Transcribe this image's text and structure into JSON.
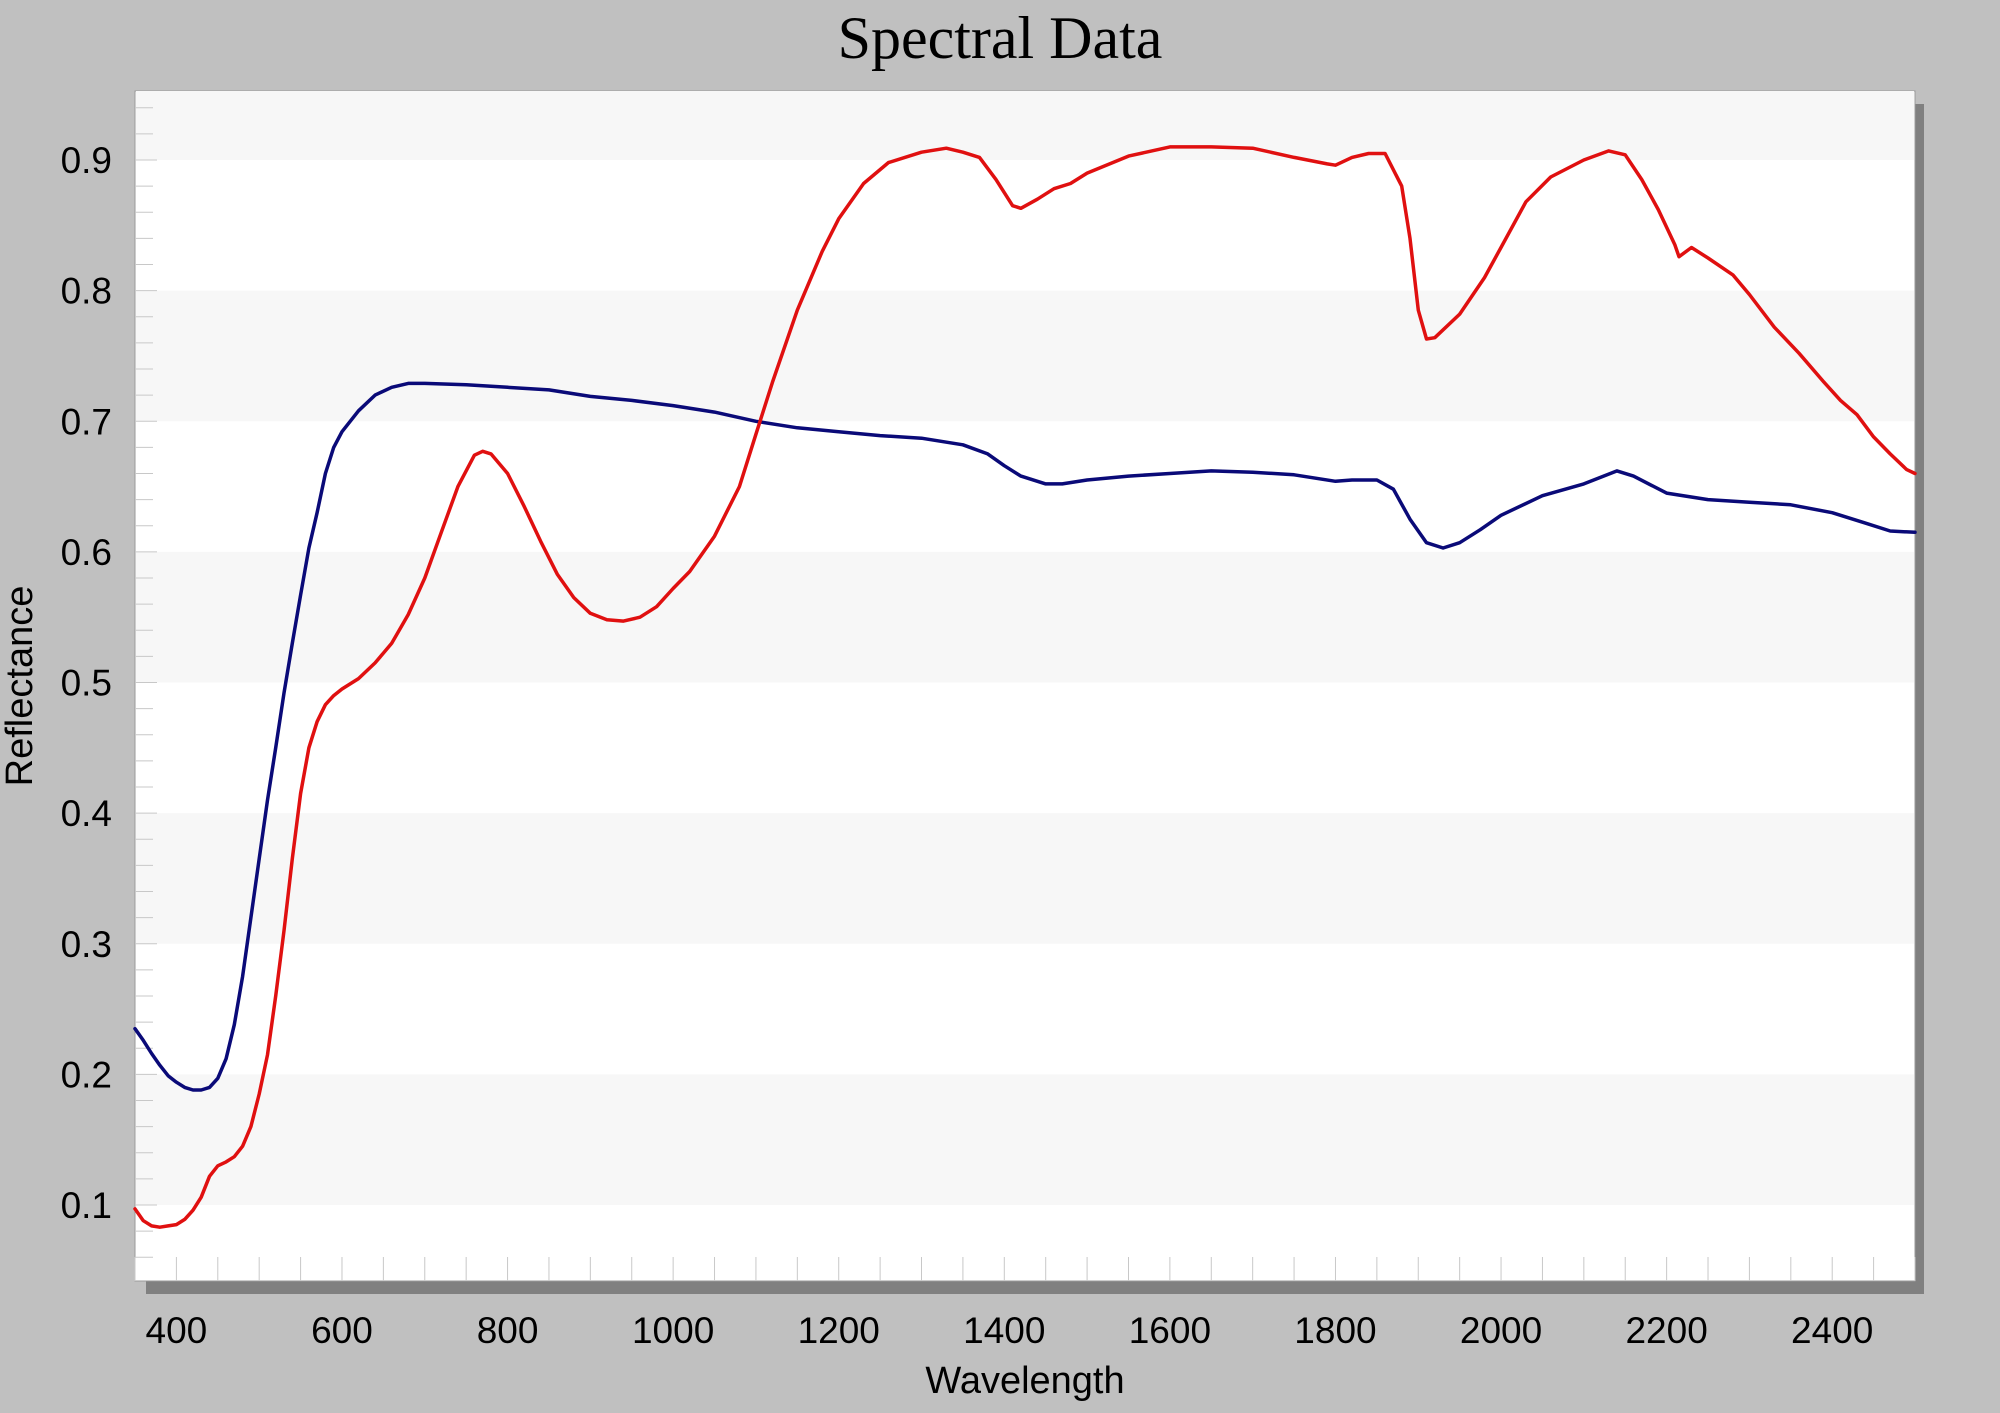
{
  "chart_data": {
    "type": "line",
    "title": "Spectral Data",
    "xlabel": "Wavelength",
    "ylabel": "Reflectance",
    "xlim": [
      350,
      2500
    ],
    "ylim": [
      0.04,
      0.95
    ],
    "xticks": [
      400,
      600,
      800,
      1000,
      1200,
      1400,
      1600,
      1800,
      2000,
      2200,
      2400
    ],
    "yticks": [
      0.1,
      0.2,
      0.3,
      0.4,
      0.5,
      0.6,
      0.7,
      0.8,
      0.9
    ],
    "grid": "alternating horizontal bands",
    "legend": "none",
    "series": [
      {
        "color": "#0a0a78",
        "points": [
          [
            350,
            0.235
          ],
          [
            360,
            0.226
          ],
          [
            370,
            0.216
          ],
          [
            380,
            0.207
          ],
          [
            390,
            0.199
          ],
          [
            400,
            0.194
          ],
          [
            410,
            0.19
          ],
          [
            420,
            0.188
          ],
          [
            430,
            0.188
          ],
          [
            440,
            0.19
          ],
          [
            450,
            0.197
          ],
          [
            460,
            0.212
          ],
          [
            470,
            0.238
          ],
          [
            480,
            0.275
          ],
          [
            490,
            0.32
          ],
          [
            500,
            0.365
          ],
          [
            510,
            0.41
          ],
          [
            520,
            0.45
          ],
          [
            530,
            0.492
          ],
          [
            540,
            0.53
          ],
          [
            550,
            0.567
          ],
          [
            560,
            0.603
          ],
          [
            570,
            0.63
          ],
          [
            580,
            0.66
          ],
          [
            590,
            0.68
          ],
          [
            600,
            0.692
          ],
          [
            620,
            0.708
          ],
          [
            640,
            0.72
          ],
          [
            660,
            0.726
          ],
          [
            680,
            0.729
          ],
          [
            700,
            0.729
          ],
          [
            750,
            0.728
          ],
          [
            800,
            0.726
          ],
          [
            850,
            0.724
          ],
          [
            900,
            0.719
          ],
          [
            950,
            0.716
          ],
          [
            1000,
            0.712
          ],
          [
            1050,
            0.707
          ],
          [
            1100,
            0.7
          ],
          [
            1150,
            0.695
          ],
          [
            1200,
            0.692
          ],
          [
            1250,
            0.689
          ],
          [
            1300,
            0.687
          ],
          [
            1350,
            0.682
          ],
          [
            1380,
            0.675
          ],
          [
            1400,
            0.666
          ],
          [
            1420,
            0.658
          ],
          [
            1450,
            0.652
          ],
          [
            1470,
            0.652
          ],
          [
            1500,
            0.655
          ],
          [
            1550,
            0.658
          ],
          [
            1600,
            0.66
          ],
          [
            1650,
            0.662
          ],
          [
            1700,
            0.661
          ],
          [
            1750,
            0.659
          ],
          [
            1800,
            0.654
          ],
          [
            1820,
            0.655
          ],
          [
            1850,
            0.655
          ],
          [
            1870,
            0.648
          ],
          [
            1890,
            0.625
          ],
          [
            1910,
            0.607
          ],
          [
            1930,
            0.603
          ],
          [
            1950,
            0.607
          ],
          [
            1975,
            0.617
          ],
          [
            2000,
            0.628
          ],
          [
            2050,
            0.643
          ],
          [
            2100,
            0.652
          ],
          [
            2120,
            0.657
          ],
          [
            2140,
            0.662
          ],
          [
            2160,
            0.658
          ],
          [
            2200,
            0.645
          ],
          [
            2250,
            0.64
          ],
          [
            2300,
            0.638
          ],
          [
            2350,
            0.636
          ],
          [
            2400,
            0.63
          ],
          [
            2440,
            0.622
          ],
          [
            2470,
            0.616
          ],
          [
            2500,
            0.615
          ]
        ]
      },
      {
        "color": "#e01010",
        "points": [
          [
            350,
            0.097
          ],
          [
            360,
            0.088
          ],
          [
            370,
            0.084
          ],
          [
            380,
            0.083
          ],
          [
            390,
            0.084
          ],
          [
            400,
            0.085
          ],
          [
            410,
            0.089
          ],
          [
            420,
            0.096
          ],
          [
            430,
            0.106
          ],
          [
            440,
            0.122
          ],
          [
            450,
            0.13
          ],
          [
            460,
            0.133
          ],
          [
            470,
            0.137
          ],
          [
            480,
            0.145
          ],
          [
            490,
            0.16
          ],
          [
            500,
            0.185
          ],
          [
            510,
            0.215
          ],
          [
            520,
            0.26
          ],
          [
            530,
            0.31
          ],
          [
            540,
            0.365
          ],
          [
            550,
            0.415
          ],
          [
            560,
            0.45
          ],
          [
            570,
            0.47
          ],
          [
            580,
            0.483
          ],
          [
            590,
            0.49
          ],
          [
            600,
            0.495
          ],
          [
            620,
            0.503
          ],
          [
            640,
            0.515
          ],
          [
            660,
            0.53
          ],
          [
            680,
            0.552
          ],
          [
            700,
            0.58
          ],
          [
            720,
            0.615
          ],
          [
            740,
            0.65
          ],
          [
            760,
            0.674
          ],
          [
            770,
            0.677
          ],
          [
            780,
            0.675
          ],
          [
            800,
            0.66
          ],
          [
            820,
            0.635
          ],
          [
            840,
            0.608
          ],
          [
            860,
            0.583
          ],
          [
            880,
            0.565
          ],
          [
            900,
            0.553
          ],
          [
            920,
            0.548
          ],
          [
            940,
            0.547
          ],
          [
            960,
            0.55
          ],
          [
            980,
            0.558
          ],
          [
            1000,
            0.572
          ],
          [
            1020,
            0.585
          ],
          [
            1050,
            0.612
          ],
          [
            1080,
            0.65
          ],
          [
            1100,
            0.69
          ],
          [
            1120,
            0.73
          ],
          [
            1150,
            0.785
          ],
          [
            1180,
            0.83
          ],
          [
            1200,
            0.855
          ],
          [
            1230,
            0.882
          ],
          [
            1260,
            0.898
          ],
          [
            1300,
            0.906
          ],
          [
            1330,
            0.909
          ],
          [
            1350,
            0.906
          ],
          [
            1370,
            0.902
          ],
          [
            1390,
            0.885
          ],
          [
            1410,
            0.865
          ],
          [
            1420,
            0.863
          ],
          [
            1440,
            0.87
          ],
          [
            1460,
            0.878
          ],
          [
            1480,
            0.882
          ],
          [
            1500,
            0.89
          ],
          [
            1550,
            0.903
          ],
          [
            1600,
            0.91
          ],
          [
            1650,
            0.91
          ],
          [
            1700,
            0.909
          ],
          [
            1750,
            0.902
          ],
          [
            1790,
            0.897
          ],
          [
            1800,
            0.896
          ],
          [
            1820,
            0.902
          ],
          [
            1840,
            0.905
          ],
          [
            1860,
            0.905
          ],
          [
            1880,
            0.88
          ],
          [
            1890,
            0.84
          ],
          [
            1900,
            0.785
          ],
          [
            1910,
            0.763
          ],
          [
            1920,
            0.764
          ],
          [
            1950,
            0.782
          ],
          [
            1980,
            0.81
          ],
          [
            2000,
            0.833
          ],
          [
            2030,
            0.868
          ],
          [
            2060,
            0.887
          ],
          [
            2100,
            0.9
          ],
          [
            2130,
            0.907
          ],
          [
            2150,
            0.904
          ],
          [
            2170,
            0.885
          ],
          [
            2190,
            0.862
          ],
          [
            2210,
            0.835
          ],
          [
            2215,
            0.826
          ],
          [
            2230,
            0.833
          ],
          [
            2250,
            0.825
          ],
          [
            2280,
            0.812
          ],
          [
            2300,
            0.797
          ],
          [
            2330,
            0.772
          ],
          [
            2360,
            0.752
          ],
          [
            2390,
            0.73
          ],
          [
            2410,
            0.716
          ],
          [
            2430,
            0.705
          ],
          [
            2450,
            0.688
          ],
          [
            2470,
            0.675
          ],
          [
            2490,
            0.663
          ],
          [
            2500,
            0.66
          ]
        ]
      }
    ]
  }
}
